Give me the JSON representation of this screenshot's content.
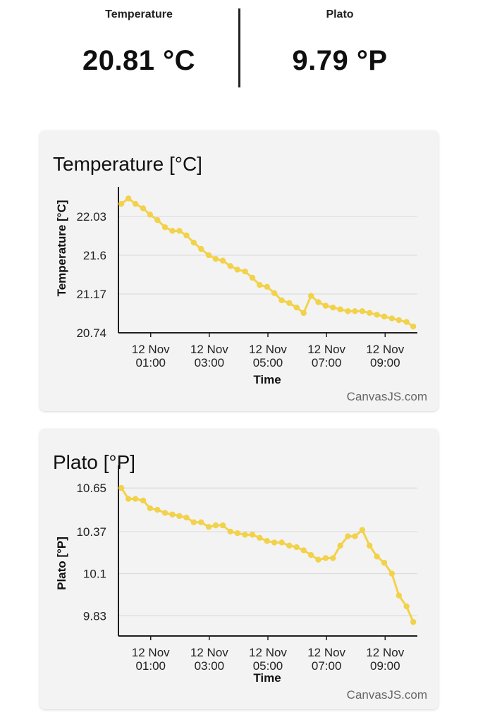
{
  "stats": {
    "temperature": {
      "label": "Temperature",
      "value": "20.81 °C"
    },
    "plato": {
      "label": "Plato",
      "value": "9.79 °P"
    }
  },
  "credit": "CanvasJS.com",
  "colors": {
    "line": "#f2d24b",
    "card": "#f3f3f3",
    "grid": "#d8d8d8",
    "axis": "#1f1f1f"
  },
  "chart_data": [
    {
      "id": "temperature",
      "type": "line",
      "title": "Temperature [°C]",
      "xlabel": "Time",
      "ylabel": "Temperature [°C]",
      "x_tick_lines": [
        "12 Nov",
        "12 Nov",
        "12 Nov",
        "12 Nov",
        "12 Nov"
      ],
      "x_tick_times": [
        "01:00",
        "03:00",
        "05:00",
        "07:00",
        "09:00"
      ],
      "x_tick_hours": [
        1,
        3,
        5,
        7,
        9
      ],
      "x_range": [
        -0.1,
        10.1
      ],
      "y_ticks": [
        20.74,
        21.17,
        21.6,
        22.03
      ],
      "ylim": [
        20.74,
        22.28
      ],
      "grid": true,
      "series": [
        {
          "name": "Temperature",
          "x": [
            0.0,
            0.24,
            0.48,
            0.74,
            0.98,
            1.23,
            1.49,
            1.74,
            1.98,
            2.22,
            2.47,
            2.72,
            2.98,
            3.22,
            3.46,
            3.72,
            3.96,
            4.22,
            4.47,
            4.72,
            4.97,
            5.22,
            5.47,
            5.73,
            5.98,
            6.22,
            6.47,
            6.72,
            6.97,
            7.22,
            7.47,
            7.73,
            7.97,
            8.22,
            8.47,
            8.72,
            8.97,
            9.23,
            9.47,
            9.73,
            9.96
          ],
          "values": [
            22.17,
            22.23,
            22.17,
            22.12,
            22.05,
            21.99,
            21.91,
            21.87,
            21.87,
            21.82,
            21.74,
            21.67,
            21.6,
            21.56,
            21.54,
            21.48,
            21.44,
            21.42,
            21.35,
            21.27,
            21.25,
            21.18,
            21.1,
            21.07,
            21.02,
            20.96,
            21.15,
            21.08,
            21.04,
            21.02,
            21.0,
            20.98,
            20.98,
            20.98,
            20.96,
            20.94,
            20.92,
            20.9,
            20.88,
            20.86,
            20.81
          ]
        }
      ]
    },
    {
      "id": "plato",
      "type": "line",
      "title": "Plato [°P]",
      "xlabel": "Time",
      "ylabel": "Plato [°P]",
      "x_tick_lines": [
        "12 Nov",
        "12 Nov",
        "12 Nov",
        "12 Nov",
        "12 Nov"
      ],
      "x_tick_times": [
        "01:00",
        "03:00",
        "05:00",
        "07:00",
        "09:00"
      ],
      "x_tick_hours": [
        1,
        3,
        5,
        7,
        9
      ],
      "x_range": [
        -0.1,
        10.1
      ],
      "y_ticks": [
        9.83,
        10.1,
        10.37,
        10.65
      ],
      "ylim": [
        9.7,
        10.75
      ],
      "grid": true,
      "series": [
        {
          "name": "Plato",
          "x": [
            0.0,
            0.24,
            0.48,
            0.74,
            0.98,
            1.23,
            1.49,
            1.74,
            1.98,
            2.22,
            2.47,
            2.72,
            2.98,
            3.22,
            3.46,
            3.72,
            3.96,
            4.22,
            4.47,
            4.72,
            4.97,
            5.22,
            5.47,
            5.73,
            5.98,
            6.22,
            6.47,
            6.72,
            6.97,
            7.22,
            7.47,
            7.73,
            7.97,
            8.22,
            8.47,
            8.72,
            8.97,
            9.23,
            9.47,
            9.73,
            9.96
          ],
          "values": [
            10.65,
            10.58,
            10.58,
            10.57,
            10.52,
            10.51,
            10.49,
            10.48,
            10.47,
            10.46,
            10.43,
            10.43,
            10.4,
            10.41,
            10.41,
            10.37,
            10.36,
            10.35,
            10.35,
            10.33,
            10.31,
            10.3,
            10.3,
            10.28,
            10.27,
            10.25,
            10.22,
            10.19,
            10.2,
            10.2,
            10.28,
            10.34,
            10.34,
            10.38,
            10.28,
            10.21,
            10.17,
            10.1,
            9.96,
            9.89,
            9.79
          ]
        }
      ]
    }
  ]
}
